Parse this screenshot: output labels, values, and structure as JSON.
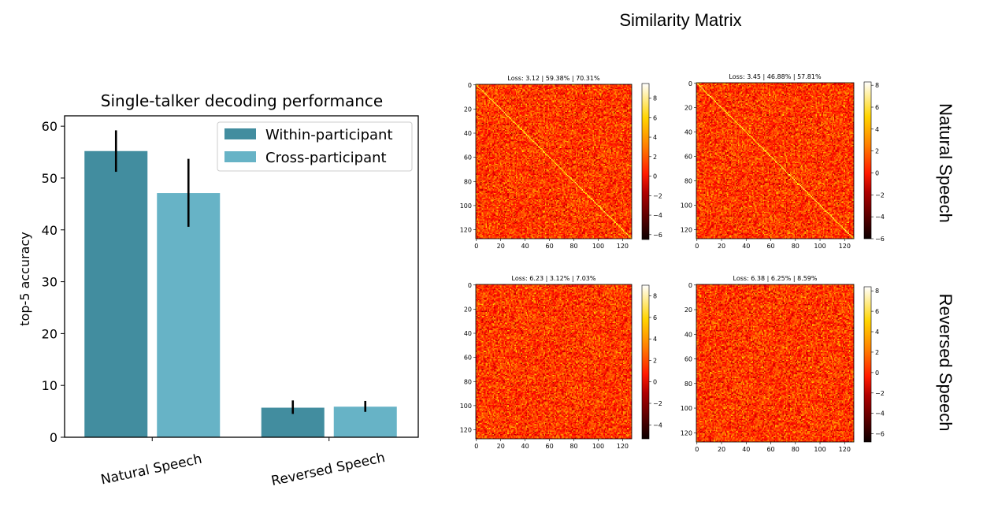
{
  "suptitle": "Similarity Matrix",
  "chart_data": [
    {
      "type": "bar",
      "title": "Single-talker decoding performance",
      "xlabel": "",
      "ylabel": "top-5 accuracy",
      "categories": [
        "Natural Speech",
        "Reversed Speech"
      ],
      "ylim": [
        0,
        62
      ],
      "yticks": [
        0,
        10,
        20,
        30,
        40,
        50,
        60
      ],
      "legend_placement": "top-right",
      "series": [
        {
          "name": "Within-participant",
          "color": "#428d9f",
          "values": [
            55.2,
            5.7
          ],
          "error_low": [
            51.2,
            4.5
          ],
          "error_high": [
            59.2,
            7.1
          ]
        },
        {
          "name": "Cross-participant",
          "color": "#67b3c6",
          "values": [
            47.1,
            5.9
          ],
          "error_low": [
            40.6,
            4.9
          ],
          "error_high": [
            53.7,
            7.0
          ]
        }
      ]
    },
    {
      "type": "heatmap",
      "row_labels": [
        "Natural Speech",
        "Reversed Speech"
      ],
      "colormap": "hot",
      "size": 128,
      "ticks": [
        0,
        20,
        40,
        60,
        80,
        100,
        120
      ],
      "panels": [
        {
          "title": "Loss:  3.12 |  59.38% |  70.31%",
          "diagonal": true,
          "vmin": -6.5,
          "vmax": 9.5,
          "cbar_ticks": [
            -6,
            -4,
            -2,
            0,
            2,
            4,
            6,
            8
          ]
        },
        {
          "title": "Loss:  3.45 |  46.88% |  57.81%",
          "diagonal": true,
          "vmin": -6.0,
          "vmax": 8.3,
          "cbar_ticks": [
            -6,
            -4,
            -2,
            0,
            2,
            4,
            6,
            8
          ]
        },
        {
          "title": "Loss:  6.23 |  3.12% |  7.03%",
          "diagonal": false,
          "vmin": -5.3,
          "vmax": 9.0,
          "cbar_ticks": [
            -4,
            -2,
            0,
            2,
            4,
            6,
            8
          ]
        },
        {
          "title": "Loss:  6.38 |  6.25% |  8.59%",
          "diagonal": false,
          "vmin": -6.8,
          "vmax": 8.4,
          "cbar_ticks": [
            -6,
            -4,
            -2,
            0,
            2,
            4,
            6,
            8
          ]
        }
      ]
    }
  ]
}
